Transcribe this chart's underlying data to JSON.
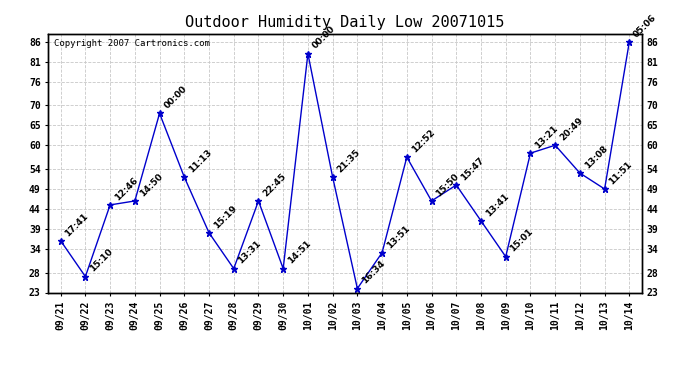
{
  "title": "Outdoor Humidity Daily Low 20071015",
  "copyright": "Copyright 2007 Cartronics.com",
  "x_labels": [
    "09/21",
    "09/22",
    "09/23",
    "09/24",
    "09/25",
    "09/26",
    "09/27",
    "09/28",
    "09/29",
    "09/30",
    "10/01",
    "10/02",
    "10/03",
    "10/04",
    "10/05",
    "10/06",
    "10/07",
    "10/08",
    "10/09",
    "10/10",
    "10/11",
    "10/12",
    "10/13",
    "10/14"
  ],
  "y_values": [
    36,
    27,
    45,
    46,
    68,
    52,
    38,
    29,
    46,
    29,
    83,
    52,
    24,
    33,
    57,
    46,
    50,
    41,
    32,
    58,
    60,
    53,
    49,
    86
  ],
  "point_labels": [
    "17:41",
    "15:10",
    "12:46",
    "14:50",
    "00:00",
    "11:13",
    "15:19",
    "13:31",
    "22:45",
    "14:51",
    "00:00",
    "21:35",
    "16:34",
    "13:51",
    "12:52",
    "15:50",
    "15:47",
    "13:41",
    "15:01",
    "13:21",
    "20:49",
    "13:08",
    "11:51",
    "05:06"
  ],
  "ylim_min": 23,
  "ylim_max": 88,
  "yticks": [
    23,
    28,
    34,
    39,
    44,
    49,
    54,
    60,
    65,
    70,
    76,
    81,
    86
  ],
  "line_color": "#0000cc",
  "marker_color": "#0000cc",
  "grid_color": "#c8c8c8",
  "bg_color": "#ffffff",
  "plot_bg_color": "#ffffff",
  "title_fontsize": 11,
  "label_fontsize": 6.5,
  "tick_fontsize": 7,
  "copyright_fontsize": 6.5
}
